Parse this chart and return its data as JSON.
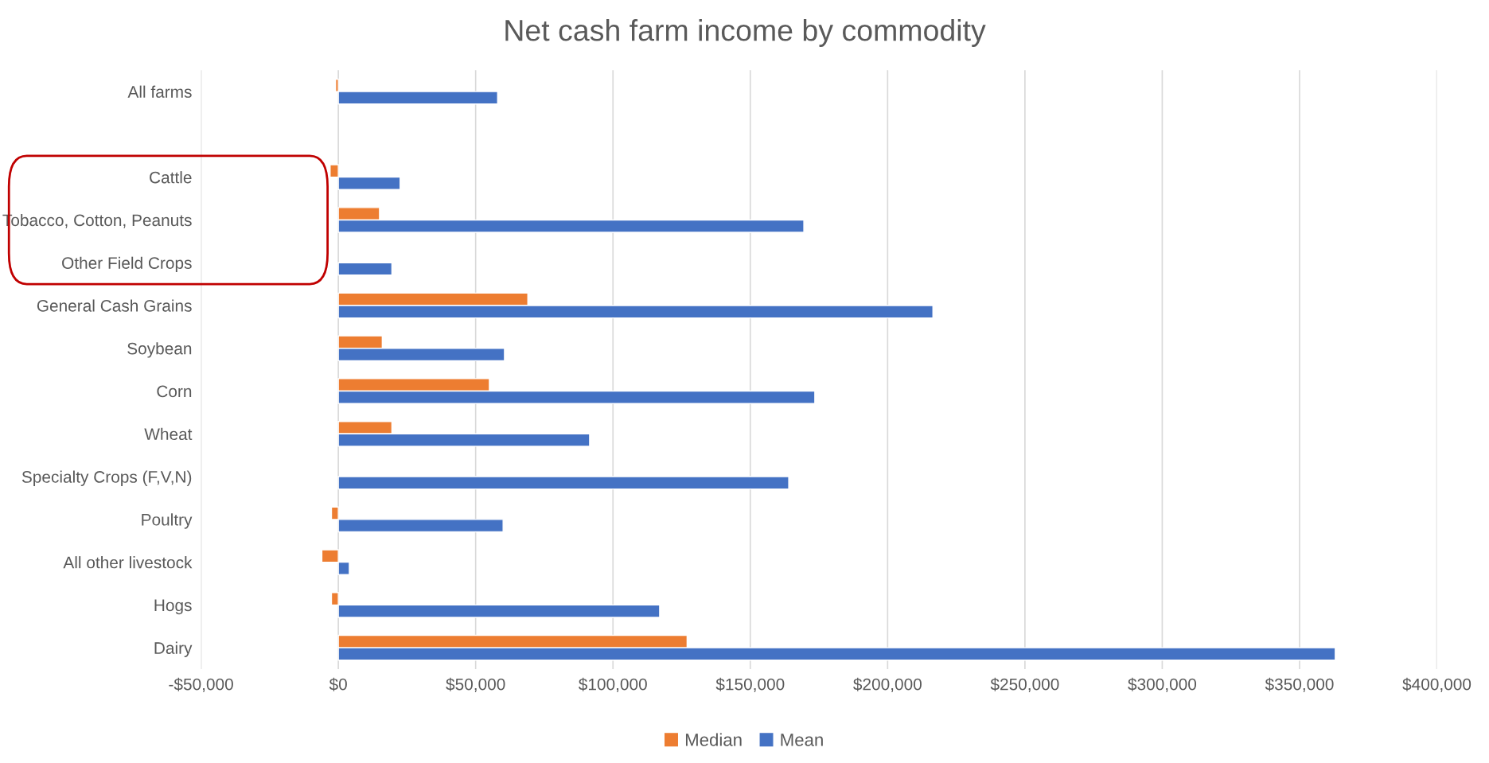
{
  "chart_data": {
    "type": "bar",
    "orientation": "horizontal",
    "title": "Net cash farm income by commodity",
    "categories": [
      "All farms",
      null,
      "Cattle",
      "Tobacco, Cotton, Peanuts",
      "Other Field Crops",
      "General Cash Grains",
      "Soybean",
      "Corn",
      "Wheat",
      "Specialty Crops (F,V,N)",
      "Poultry",
      "All other livestock",
      "Hogs",
      "Dairy"
    ],
    "series": [
      {
        "name": "Median",
        "color": "#ed7d31",
        "values": [
          -1000,
          null,
          -3000,
          15000,
          null,
          69000,
          16000,
          55000,
          19500,
          null,
          -2500,
          -6000,
          -2500,
          127000
        ]
      },
      {
        "name": "Mean",
        "color": "#4472c4",
        "values": [
          58000,
          null,
          22500,
          169500,
          19500,
          216500,
          60500,
          173500,
          91500,
          164000,
          60000,
          4000,
          117000,
          363000
        ]
      }
    ],
    "xlim": [
      -50000,
      400000
    ],
    "xticks": [
      {
        "value": -50000,
        "label": "-$50,000"
      },
      {
        "value": 0,
        "label": "$0"
      },
      {
        "value": 50000,
        "label": "$50,000"
      },
      {
        "value": 100000,
        "label": "$100,000"
      },
      {
        "value": 150000,
        "label": "$150,000"
      },
      {
        "value": 200000,
        "label": "$200,000"
      },
      {
        "value": 250000,
        "label": "$250,000"
      },
      {
        "value": 300000,
        "label": "$300,000"
      },
      {
        "value": 350000,
        "label": "$350,000"
      },
      {
        "value": 400000,
        "label": "$400,000"
      }
    ],
    "grid": "x",
    "legend": "bottom"
  }
}
